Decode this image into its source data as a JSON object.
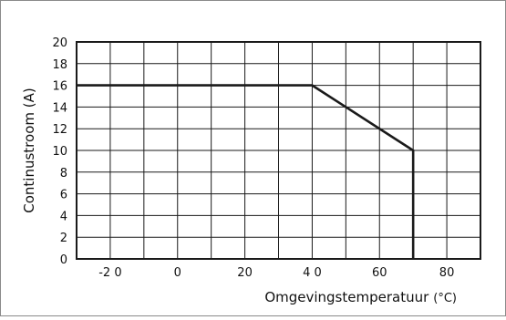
{
  "chart_data": {
    "type": "line",
    "title": "",
    "xlabel": "Omgevingstemperatuur",
    "xlabel_unit": "(°C)",
    "ylabel": "Continustroom (A)",
    "xlim": [
      -30,
      90
    ],
    "ylim": [
      0,
      20
    ],
    "xticks": [
      -20,
      0,
      20,
      40,
      60,
      80
    ],
    "xtick_labels": [
      "-2 0",
      "0",
      "20",
      "4 0",
      "60",
      "80"
    ],
    "yticks": [
      0,
      2,
      4,
      6,
      8,
      10,
      12,
      14,
      16,
      18,
      20
    ],
    "ytick_labels": [
      "0",
      "2",
      "4",
      "6",
      "8",
      "10",
      "12",
      "14",
      "16",
      "18",
      "20"
    ],
    "x_gridlines": [
      -20,
      -10,
      0,
      10,
      20,
      30,
      40,
      50,
      60,
      70,
      80
    ],
    "grid": true,
    "legend": "none",
    "line_color": "#1a1a1a",
    "series": [
      {
        "x": [
          -30,
          40,
          70,
          70
        ],
        "y": [
          16,
          16,
          10,
          0
        ]
      }
    ]
  }
}
